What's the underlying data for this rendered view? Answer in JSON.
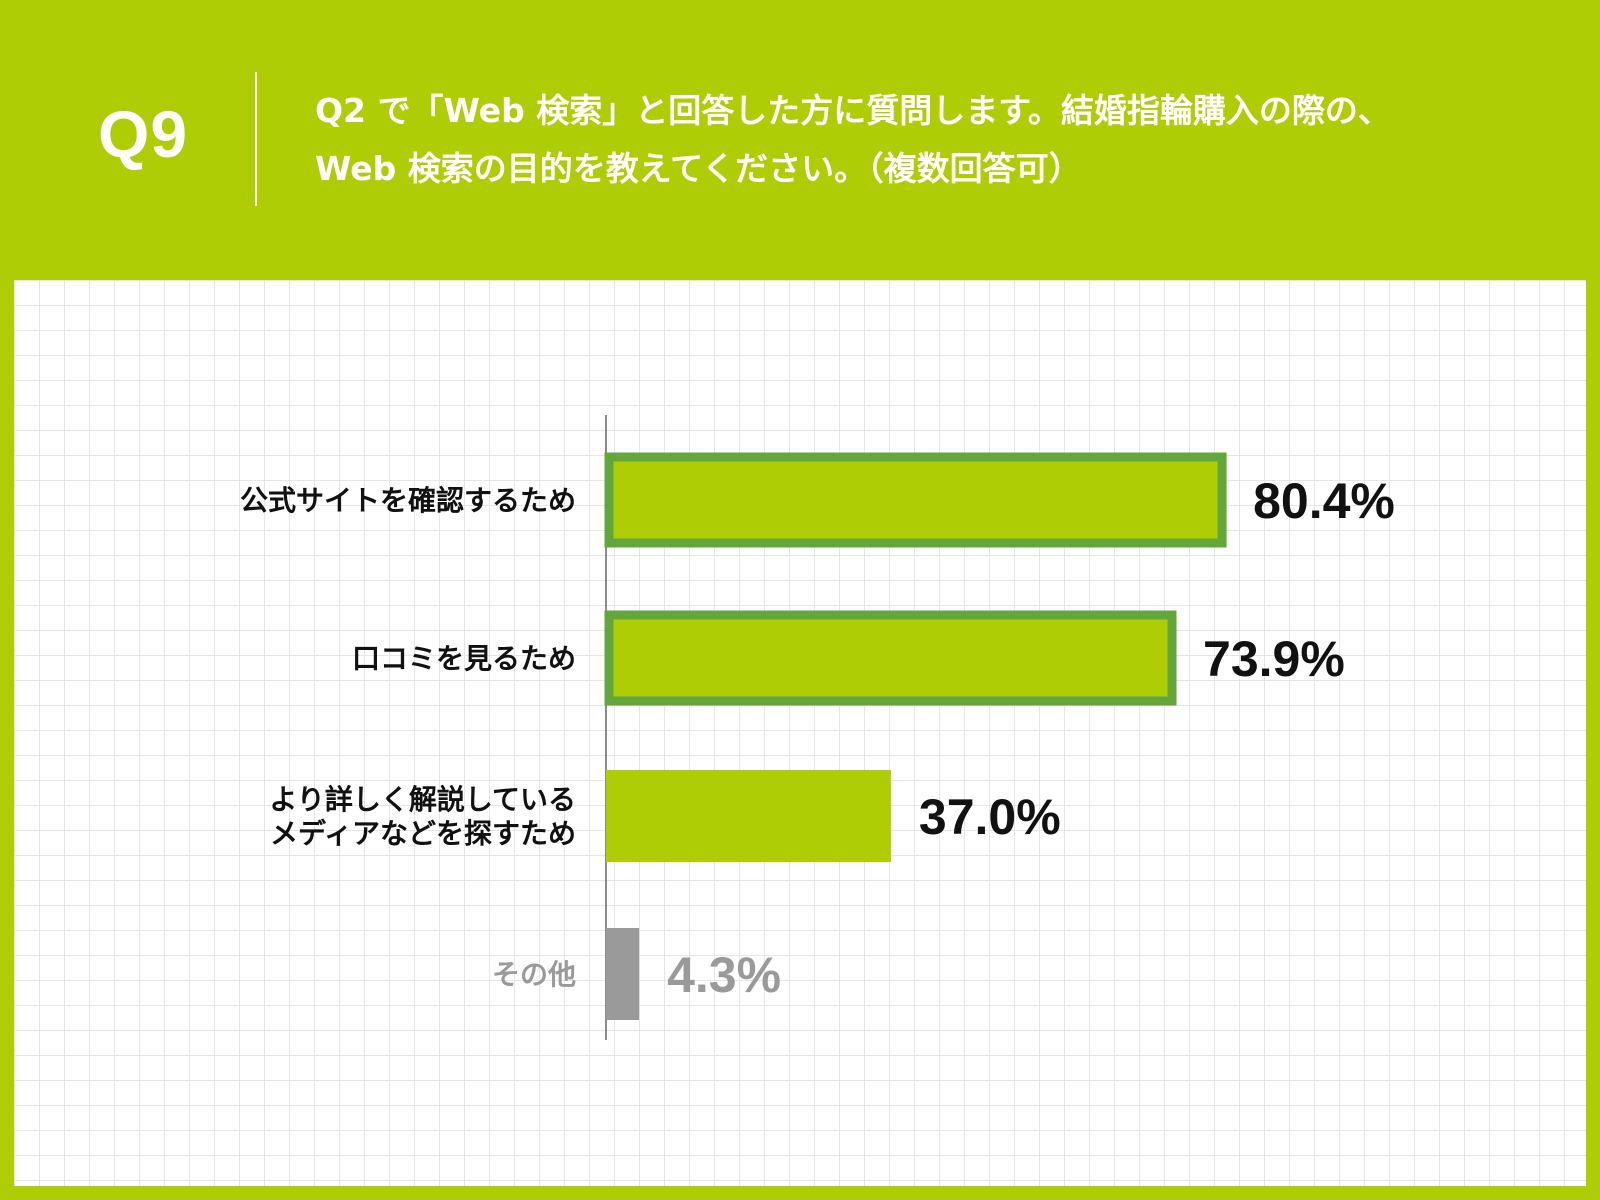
{
  "header": {
    "qnum": "Q9",
    "question_line1": "Q2 で「Web 検索」と回答した方に質問します。結婚指輪購入の際の、",
    "question_line2": "Web 検索の目的を教えてください。（複数回答可）"
  },
  "colors": {
    "brand_green": "#aecd05",
    "outline_green": "#62a63c",
    "bar_gray": "#9a9a9a",
    "label_dark": "#111111",
    "label_gray": "#9a9a9a"
  },
  "chart_data": {
    "type": "bar",
    "orientation": "horizontal",
    "title": "",
    "xlabel": "",
    "ylabel": "",
    "xlim": [
      0,
      100
    ],
    "grid": true,
    "legend": "none",
    "categories": [
      [
        "公式サイトを確認するため"
      ],
      [
        "口コミを見るため"
      ],
      [
        "より詳しく解説している",
        "メディアなどを探すため"
      ],
      [
        "その他"
      ]
    ],
    "values": [
      80.4,
      73.9,
      37.0,
      4.3
    ],
    "value_labels": [
      "80.4%",
      "73.9%",
      "37.0%",
      "4.3%"
    ],
    "highlighted": [
      true,
      true,
      false,
      false
    ],
    "muted": [
      false,
      false,
      false,
      true
    ]
  }
}
